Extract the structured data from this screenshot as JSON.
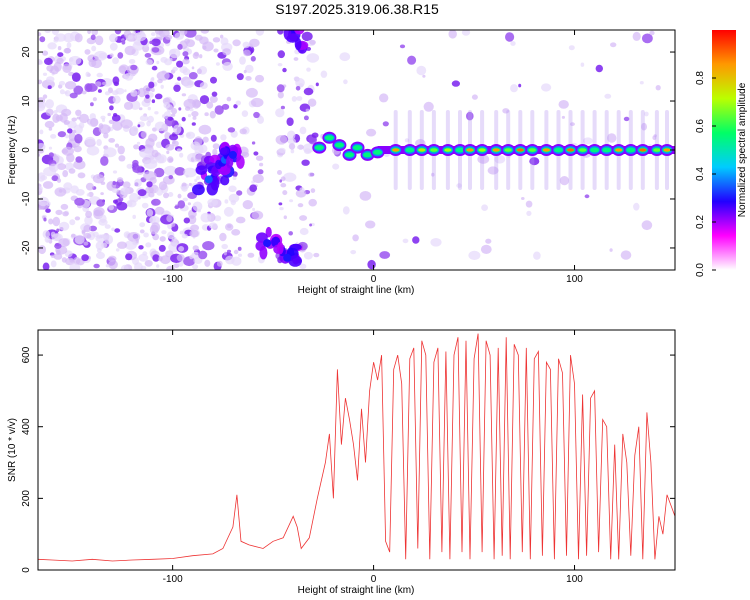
{
  "title": "S197.2025.319.06.38.R15",
  "colors": {
    "snr_line": "#ee3333",
    "axis": "#000000",
    "background": "#ffffff"
  },
  "chart_data": [
    {
      "type": "heatmap",
      "xlabel": "Height of straight line (km)",
      "ylabel": "Frequency (Hz)",
      "xlim": [
        -167,
        150
      ],
      "ylim": [
        -24.5,
        24.5
      ],
      "xticks": [
        {
          "value": -100,
          "label": "-100"
        },
        {
          "value": 0,
          "label": "0"
        },
        {
          "value": 100,
          "label": "100"
        }
      ],
      "yticks": [
        {
          "value": 20,
          "label": "20"
        },
        {
          "value": 10,
          "label": "10"
        },
        {
          "value": 0,
          "label": "0"
        },
        {
          "value": -10,
          "label": "-10"
        },
        {
          "value": -20,
          "label": "-20"
        }
      ],
      "colorbar": {
        "label": "Normalized spectral amplitude",
        "range": [
          0,
          1
        ],
        "ticks": [
          {
            "value": 0.0,
            "label": "0.0"
          },
          {
            "value": 0.2,
            "label": "0.2"
          },
          {
            "value": 0.4,
            "label": "0.4"
          },
          {
            "value": 0.6,
            "label": "0.6"
          },
          {
            "value": 0.8,
            "label": "0.8"
          }
        ],
        "stops": [
          "#ffffff",
          "#ff00ff",
          "#2200ff",
          "#00ccff",
          "#00ff66",
          "#bbff00",
          "#ff9900",
          "#ff0000"
        ]
      },
      "noise_regions": [
        {
          "x0": -167,
          "x1": -85,
          "density": 0.9
        },
        {
          "x0": -85,
          "x1": -55,
          "density": 0.45
        },
        {
          "x0": -47,
          "x1": -30,
          "density": 0.55
        },
        {
          "x0": -30,
          "x1": 150,
          "density": 0.05
        }
      ],
      "blobs": [
        {
          "x": -78,
          "y": -4,
          "amp": 0.4
        },
        {
          "x": -82,
          "y": -6,
          "amp": 0.35
        },
        {
          "x": -74,
          "y": -2,
          "amp": 0.35
        },
        {
          "x": -70,
          "y": -1,
          "amp": 0.3
        },
        {
          "x": -53,
          "y": -19,
          "amp": 0.3
        },
        {
          "x": -43,
          "y": -22,
          "amp": 0.3
        },
        {
          "x": -40,
          "y": 23,
          "amp": 0.25
        }
      ],
      "ridge": [
        {
          "x": -27,
          "y": 0.5,
          "amp": 0.35
        },
        {
          "x": -22,
          "y": 2.5,
          "amp": 0.4
        },
        {
          "x": -17,
          "y": 1.0,
          "amp": 0.35
        },
        {
          "x": -12,
          "y": -1.0,
          "amp": 0.35
        },
        {
          "x": -8,
          "y": 0.5,
          "amp": 0.4
        },
        {
          "x": -3,
          "y": -1.0,
          "amp": 0.35
        },
        {
          "x": 2,
          "y": -0.5,
          "amp": 0.45
        },
        {
          "x": 11,
          "y": 0.0,
          "amp": 0.85
        },
        {
          "x": 18,
          "y": 0.0,
          "amp": 0.6
        },
        {
          "x": 24,
          "y": 0.0,
          "amp": 0.75
        },
        {
          "x": 30,
          "y": 0.0,
          "amp": 0.65
        },
        {
          "x": 37,
          "y": 0.0,
          "amp": 0.7
        },
        {
          "x": 43,
          "y": 0.0,
          "amp": 0.6
        },
        {
          "x": 48,
          "y": 0.0,
          "amp": 0.85
        },
        {
          "x": 54,
          "y": 0.0,
          "amp": 0.7
        },
        {
          "x": 61,
          "y": 0.0,
          "amp": 0.85
        },
        {
          "x": 67,
          "y": 0.0,
          "amp": 0.65
        },
        {
          "x": 73,
          "y": 0.0,
          "amp": 0.9
        },
        {
          "x": 79,
          "y": 0.0,
          "amp": 0.65
        },
        {
          "x": 86,
          "y": 0.0,
          "amp": 0.85
        },
        {
          "x": 92,
          "y": 0.0,
          "amp": 0.6
        },
        {
          "x": 98,
          "y": 0.0,
          "amp": 0.9
        },
        {
          "x": 104,
          "y": 0.0,
          "amp": 0.65
        },
        {
          "x": 110,
          "y": 0.0,
          "amp": 0.6
        },
        {
          "x": 116,
          "y": 0.0,
          "amp": 0.55
        },
        {
          "x": 122,
          "y": 0.0,
          "amp": 0.85
        },
        {
          "x": 128,
          "y": 0.0,
          "amp": 0.6
        },
        {
          "x": 134,
          "y": 0.0,
          "amp": 0.9
        },
        {
          "x": 141,
          "y": 0.0,
          "amp": 0.65
        },
        {
          "x": 146,
          "y": 0.0,
          "amp": 0.85
        }
      ]
    },
    {
      "type": "line",
      "xlabel": "Height of straight line (km)",
      "ylabel": "SNR (10 * v/v)",
      "xlim": [
        -167,
        150
      ],
      "ylim": [
        0,
        670
      ],
      "xticks": [
        {
          "value": -100,
          "label": "-100"
        },
        {
          "value": 0,
          "label": "0"
        },
        {
          "value": 100,
          "label": "100"
        }
      ],
      "yticks": [
        {
          "value": 0,
          "label": "0"
        },
        {
          "value": 200,
          "label": "200"
        },
        {
          "value": 400,
          "label": "400"
        },
        {
          "value": 600,
          "label": "600"
        }
      ],
      "series": [
        {
          "x": [
            -167,
            -160,
            -150,
            -140,
            -130,
            -120,
            -110,
            -100,
            -90,
            -80,
            -75,
            -70,
            -68,
            -66,
            -62,
            -55,
            -50,
            -45,
            -40,
            -38,
            -36,
            -32,
            -28,
            -24,
            -22,
            -20,
            -18,
            -16,
            -14,
            -12,
            -10,
            -8,
            -6,
            -4,
            -2,
            0,
            2,
            4,
            6,
            8,
            10,
            12,
            14,
            16,
            18,
            20,
            22,
            24,
            26,
            28,
            30,
            32,
            34,
            36,
            38,
            40,
            42,
            44,
            46,
            48,
            50,
            52,
            54,
            56,
            58,
            60,
            62,
            64,
            66,
            68,
            70,
            72,
            74,
            76,
            78,
            80,
            82,
            84,
            86,
            88,
            90,
            92,
            94,
            96,
            98,
            100,
            102,
            104,
            106,
            108,
            110,
            112,
            114,
            116,
            118,
            120,
            122,
            124,
            126,
            128,
            130,
            132,
            134,
            136,
            138,
            140,
            142,
            144,
            146,
            148,
            150
          ],
          "y": [
            30,
            28,
            25,
            30,
            25,
            28,
            30,
            32,
            40,
            45,
            60,
            120,
            210,
            80,
            70,
            60,
            80,
            90,
            150,
            120,
            60,
            90,
            200,
            300,
            380,
            200,
            560,
            350,
            480,
            420,
            350,
            250,
            450,
            300,
            500,
            580,
            530,
            600,
            80,
            50,
            560,
            600,
            520,
            30,
            590,
            620,
            60,
            640,
            600,
            30,
            580,
            620,
            50,
            610,
            30,
            600,
            650,
            50,
            640,
            30,
            590,
            660,
            50,
            640,
            600,
            30,
            620,
            40,
            650,
            30,
            630,
            600,
            50,
            620,
            30,
            590,
            610,
            40,
            580,
            560,
            30,
            590,
            550,
            40,
            600,
            520,
            30,
            490,
            40,
            480,
            500,
            50,
            420,
            400,
            30,
            350,
            30,
            380,
            300,
            40,
            320,
            400,
            30,
            440,
            300,
            30,
            150,
            100,
            210,
            180,
            150
          ]
        }
      ]
    }
  ]
}
